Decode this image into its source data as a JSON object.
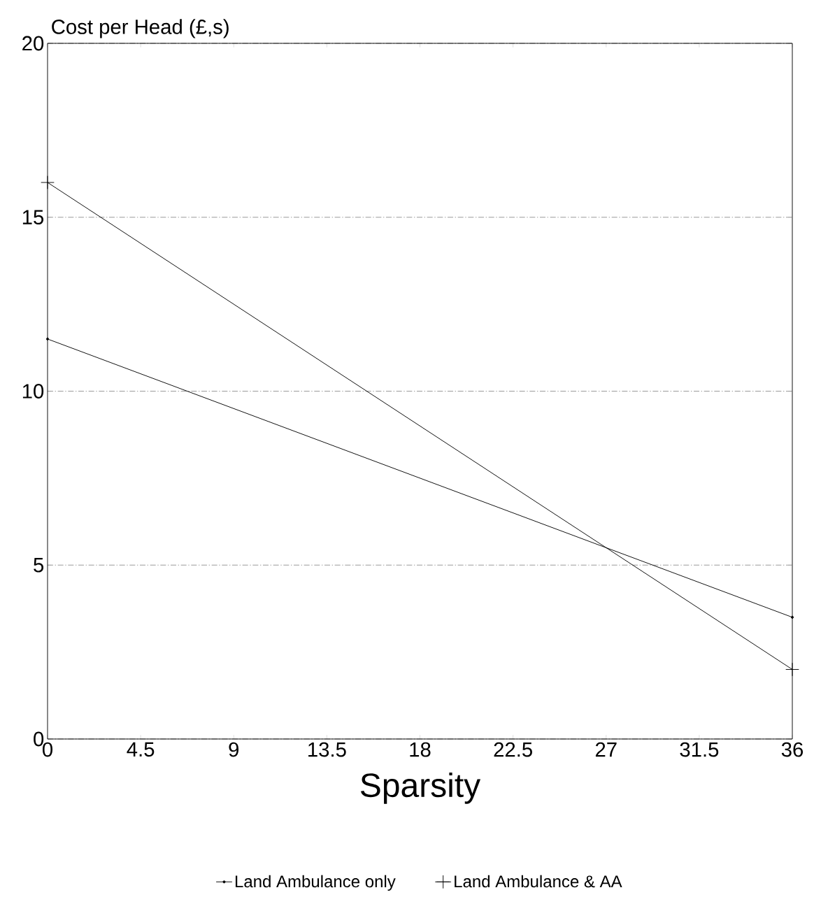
{
  "chart_data": {
    "type": "line",
    "xlabel": "Sparsity",
    "ylabel": "Cost per Head (£,s)",
    "x": [
      0,
      36
    ],
    "series": [
      {
        "name": "Land Ambulance only",
        "color": "#000000",
        "marker": "circle",
        "values": [
          11.5,
          3.5
        ]
      },
      {
        "name": "Land Ambulance & AA",
        "color": "#000000",
        "marker": "cross",
        "values": [
          16,
          2
        ]
      }
    ],
    "xlim": [
      0,
      36
    ],
    "ylim": [
      0,
      20
    ],
    "xticks": [
      0,
      4.5,
      9,
      13.5,
      18,
      22.5,
      27,
      31.5,
      36
    ],
    "yticks": [
      0,
      5,
      10,
      15,
      20
    ],
    "grid": "y",
    "legend": "bottom",
    "line_style": "solid"
  }
}
